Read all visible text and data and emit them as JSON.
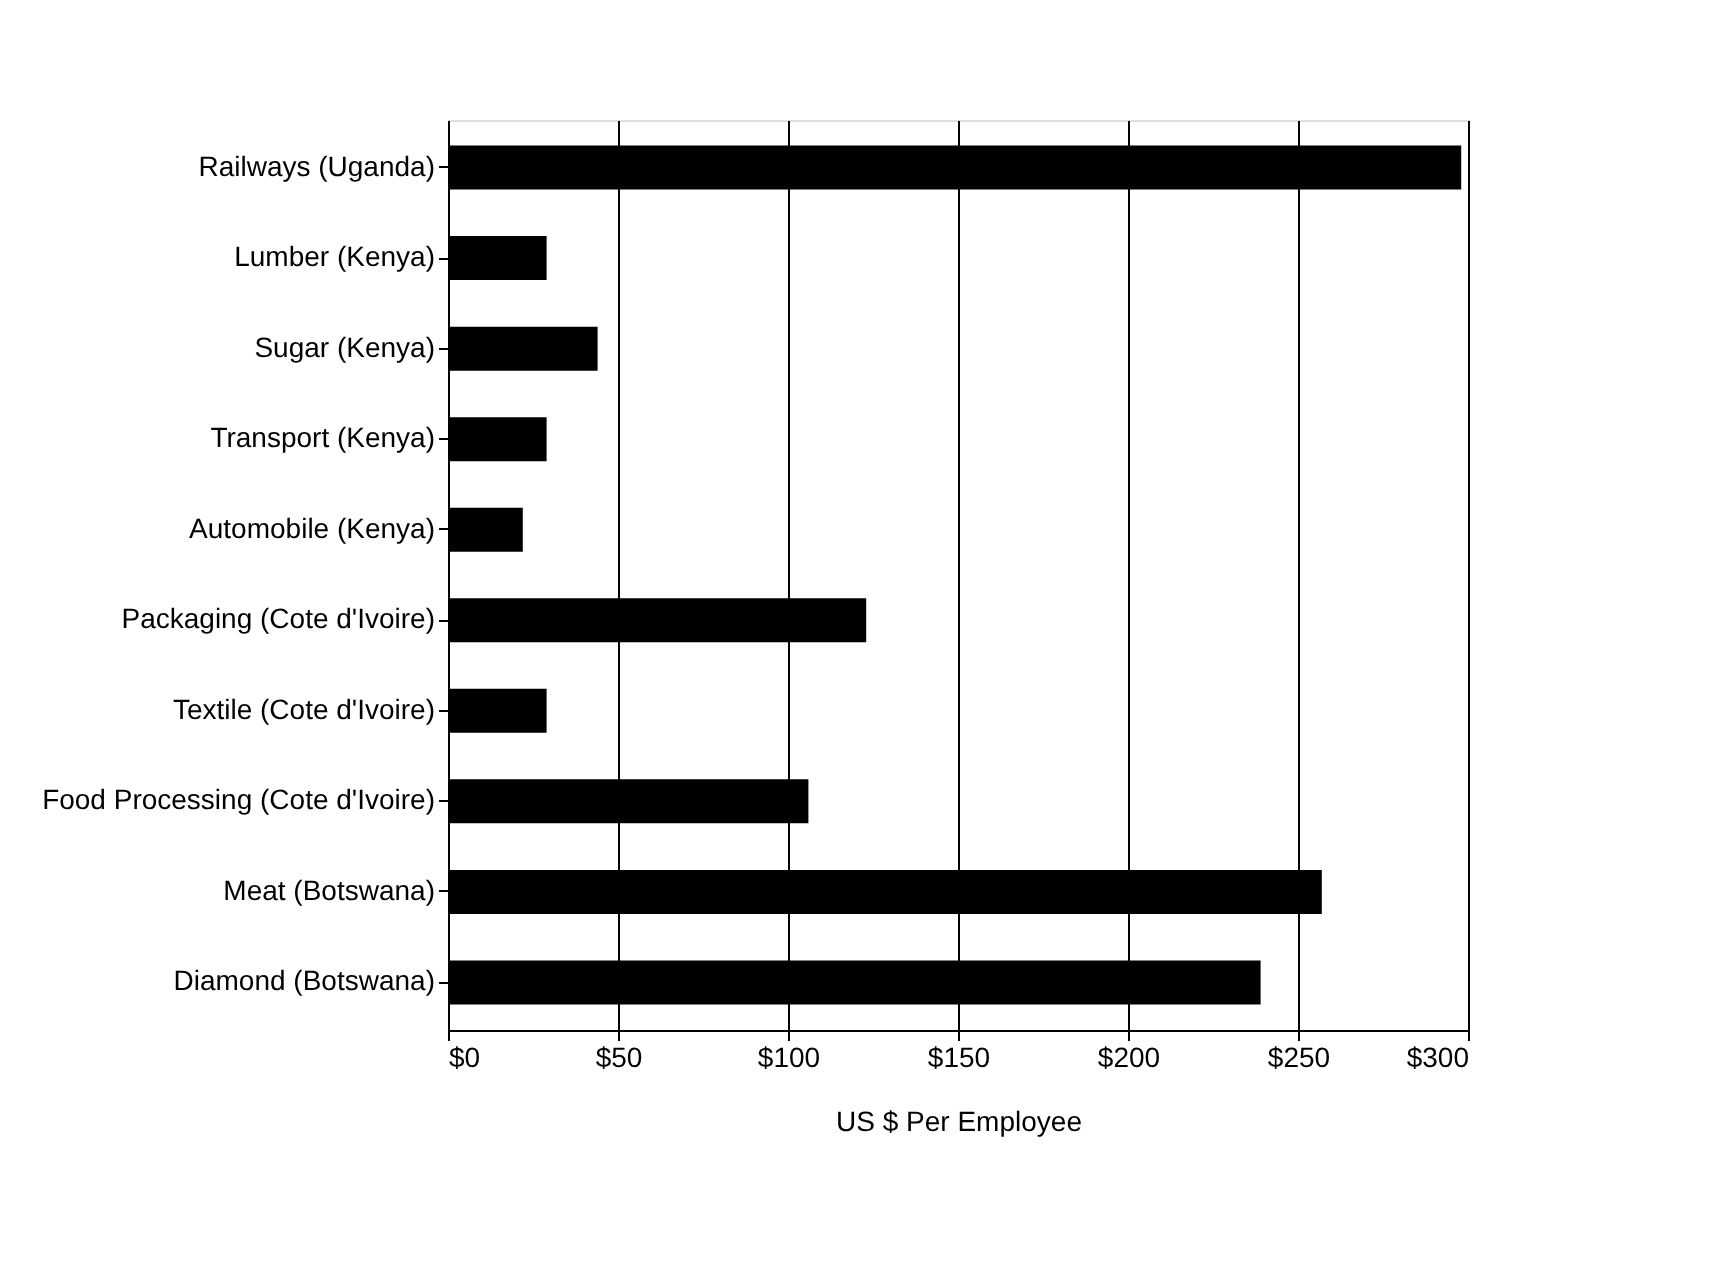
{
  "chart_data": {
    "type": "bar",
    "orientation": "horizontal",
    "xlabel": "US $ Per Employee",
    "categories": [
      "Railways (Uganda)",
      "Lumber (Kenya)",
      "Sugar (Kenya)",
      "Transport (Kenya)",
      "Automobile (Kenya)",
      "Packaging (Cote d'Ivoire)",
      "Textile (Cote d'Ivoire)",
      "Food Processing (Cote d'Ivoire)",
      "Meat (Botswana)",
      "Diamond (Botswana)"
    ],
    "values": [
      298,
      29,
      44,
      29,
      22,
      123,
      29,
      106,
      257,
      239
    ],
    "color": "#000000",
    "xlim": [
      0,
      300
    ],
    "xticks": [
      {
        "value": 0,
        "label": "$0"
      },
      {
        "value": 50,
        "label": "$50"
      },
      {
        "value": 100,
        "label": "$100"
      },
      {
        "value": 150,
        "label": "$150"
      },
      {
        "value": 200,
        "label": "$200"
      },
      {
        "value": 250,
        "label": "$250"
      },
      {
        "value": 300,
        "label": "$300"
      }
    ],
    "grid": "x"
  }
}
